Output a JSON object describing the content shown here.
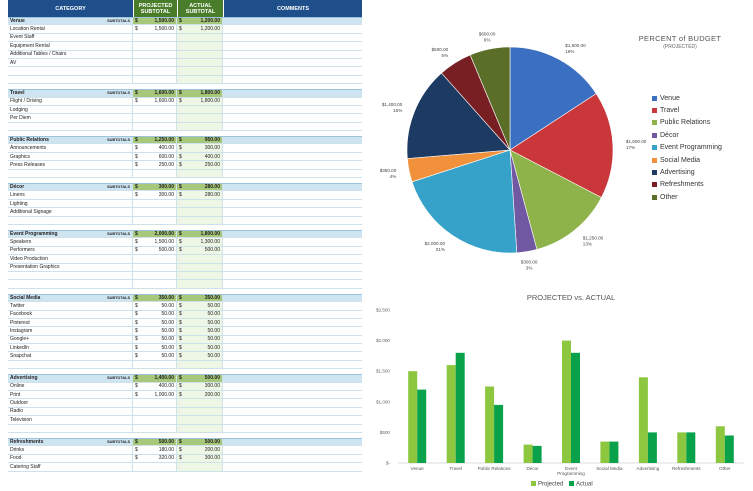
{
  "sheet": {
    "headers": {
      "category": "CATEGORY",
      "projected": "PROJECTED SUBTOTAL",
      "actual": "ACTUAL SUBTOTAL",
      "comments": "COMMENTS"
    },
    "currency_symbol": "$",
    "subtotal_label": "SUBTOTALS",
    "sections": [
      {
        "name": "Venue",
        "projected": "1,500.00",
        "actual": "1,200.00",
        "items": [
          {
            "name": "Location Rental",
            "projected": "1,500.00",
            "actual": "1,200.00"
          },
          {
            "name": "Event Staff",
            "projected": "",
            "actual": ""
          },
          {
            "name": "Equipment Rental",
            "projected": "",
            "actual": ""
          },
          {
            "name": "Additional Tables / Chairs",
            "projected": "",
            "actual": ""
          },
          {
            "name": "AV",
            "projected": "",
            "actual": ""
          }
        ],
        "blank_rows": 2
      },
      {
        "name": "Travel",
        "projected": "1,600.00",
        "actual": "1,800.00",
        "items": [
          {
            "name": "Flight / Driving",
            "projected": "1,600.00",
            "actual": "1,800.00"
          },
          {
            "name": "Lodging",
            "projected": "",
            "actual": ""
          },
          {
            "name": "Per Diem",
            "projected": "",
            "actual": ""
          }
        ],
        "blank_rows": 1
      },
      {
        "name": "Public Relations",
        "projected": "1,250.00",
        "actual": "950.00",
        "items": [
          {
            "name": "Announcements",
            "projected": "400.00",
            "actual": "300.00"
          },
          {
            "name": "Graphics",
            "projected": "600.00",
            "actual": "400.00"
          },
          {
            "name": "Press Releases",
            "projected": "250.00",
            "actual": "250.00"
          }
        ],
        "blank_rows": 1
      },
      {
        "name": "Décor",
        "projected": "300.00",
        "actual": "280.00",
        "items": [
          {
            "name": "Linens",
            "projected": "300.00",
            "actual": "280.00"
          },
          {
            "name": "Lighting",
            "projected": "",
            "actual": ""
          },
          {
            "name": "Additional Signage",
            "projected": "",
            "actual": ""
          }
        ],
        "blank_rows": 1
      },
      {
        "name": "Event Programming",
        "projected": "2,000.00",
        "actual": "1,800.00",
        "items": [
          {
            "name": "Speakers",
            "projected": "1,500.00",
            "actual": "1,300.00"
          },
          {
            "name": "Performers",
            "projected": "500.00",
            "actual": "500.00"
          },
          {
            "name": "Video Production",
            "projected": "",
            "actual": ""
          },
          {
            "name": "Presentation Graphics",
            "projected": "",
            "actual": ""
          }
        ],
        "blank_rows": 2
      },
      {
        "name": "Social Media",
        "projected": "350.00",
        "actual": "350.00",
        "items": [
          {
            "name": "Twitter",
            "projected": "50.00",
            "actual": "50.00"
          },
          {
            "name": "Facebook",
            "projected": "50.00",
            "actual": "50.00"
          },
          {
            "name": "Pinterest",
            "projected": "50.00",
            "actual": "50.00"
          },
          {
            "name": "Instagram",
            "projected": "50.00",
            "actual": "50.00"
          },
          {
            "name": "Google+",
            "projected": "50.00",
            "actual": "50.00"
          },
          {
            "name": "LinkedIn",
            "projected": "50.00",
            "actual": "50.00"
          },
          {
            "name": "Snapchat",
            "projected": "50.00",
            "actual": "50.00"
          }
        ],
        "blank_rows": 1
      },
      {
        "name": "Advertising",
        "projected": "1,400.00",
        "actual": "500.00",
        "items": [
          {
            "name": "Online",
            "projected": "400.00",
            "actual": "300.00"
          },
          {
            "name": "Print",
            "projected": "1,000.00",
            "actual": "200.00"
          },
          {
            "name": "Outdoor",
            "projected": "",
            "actual": ""
          },
          {
            "name": "Radio",
            "projected": "",
            "actual": ""
          },
          {
            "name": "Television",
            "projected": "",
            "actual": ""
          }
        ],
        "blank_rows": 1
      },
      {
        "name": "Refreshments",
        "projected": "500.00",
        "actual": "500.00",
        "items": [
          {
            "name": "Drinks",
            "projected": "180.00",
            "actual": "200.00"
          },
          {
            "name": "Food",
            "projected": "320.00",
            "actual": "300.00"
          },
          {
            "name": "Catering Staff",
            "projected": "",
            "actual": ""
          }
        ],
        "blank_rows": 0
      }
    ]
  },
  "chart_data": [
    {
      "type": "pie",
      "title": "PERCENT of BUDGET",
      "subtitle": "(PROJECTED)",
      "legend_position": "right",
      "categories": [
        "Venue",
        "Travel",
        "Public Relations",
        "Décor",
        "Event Programming",
        "Social Media",
        "Advertising",
        "Refreshments",
        "Other"
      ],
      "values": [
        1500,
        1600,
        1250,
        300,
        2000,
        350,
        1400,
        500,
        600
      ],
      "data_labels": [
        {
          "value": "$1,500.00",
          "percent": "16%"
        },
        {
          "value": "$1,600.00",
          "percent": "17%"
        },
        {
          "value": "$1,250.00",
          "percent": "13%"
        },
        {
          "value": "$300.00",
          "percent": "3%"
        },
        {
          "value": "$2,000.00",
          "percent": "21%"
        },
        {
          "value": "$350.00",
          "percent": "4%"
        },
        {
          "value": "$1,400.00",
          "percent": "15%"
        },
        {
          "value": "$500.00",
          "percent": "5%"
        },
        {
          "value": "$600.00",
          "percent": "6%"
        }
      ],
      "colors": [
        "#3a6fc1",
        "#c9373a",
        "#8db34a",
        "#7158a3",
        "#36a2c9",
        "#f2913c",
        "#1d3a62",
        "#781f24",
        "#5b6e28"
      ]
    },
    {
      "type": "bar",
      "title": "PROJECTED vs. ACTUAL",
      "categories": [
        "Venue",
        "Travel",
        "Public Relations",
        "Décor",
        "Event Programming",
        "Social Media",
        "Advertising",
        "Refreshments",
        "Other"
      ],
      "series": [
        {
          "name": "Projected",
          "values": [
            1500,
            1600,
            1250,
            300,
            2000,
            350,
            1400,
            500,
            600
          ],
          "color": "#8dc63f"
        },
        {
          "name": "Actual",
          "values": [
            1200,
            1800,
            950,
            280,
            1800,
            350,
            500,
            500,
            450
          ],
          "color": "#0aa14b"
        }
      ],
      "ylim": [
        0,
        2500
      ],
      "y_ticks": [
        "$-",
        "$500",
        "$1,000",
        "$1,500",
        "$2,000",
        "$2,500"
      ],
      "legend_position": "bottom",
      "grid": false
    }
  ]
}
